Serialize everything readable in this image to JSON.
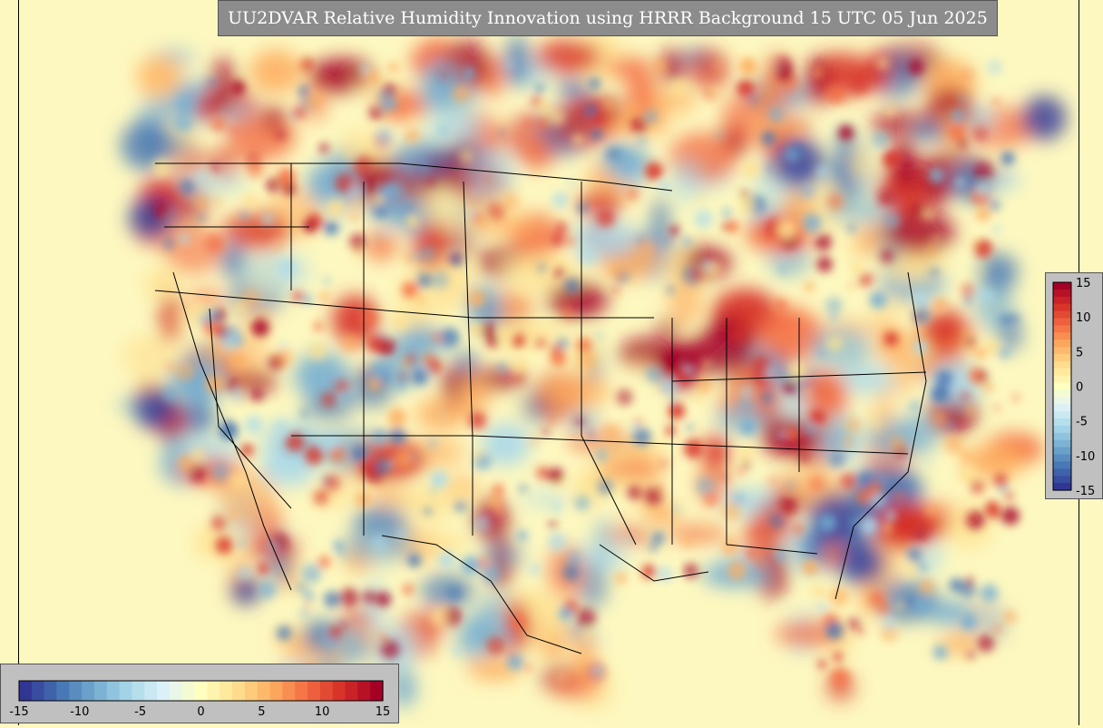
{
  "title": "UU2DVAR Relative Humidity Innovation using HRRR Background 15 UTC 05 Jun 2025",
  "colorbar": {
    "ticks": [
      "-15",
      "-10",
      "-5",
      "0",
      "5",
      "10",
      "15"
    ],
    "vertical_ticks": [
      "15",
      "10",
      "5",
      "0",
      "-5",
      "-10",
      "-15"
    ],
    "range": [
      -15,
      15
    ],
    "colors": [
      "#313695",
      "#4575b4",
      "#74add1",
      "#abd9e9",
      "#e0f3f8",
      "#ffffbf",
      "#fee090",
      "#fdae61",
      "#f46d43",
      "#d73027",
      "#a50026"
    ]
  },
  "map": {
    "region": "CONUS",
    "background_color": "#fdf8c0",
    "field": "Relative Humidity Innovation"
  }
}
